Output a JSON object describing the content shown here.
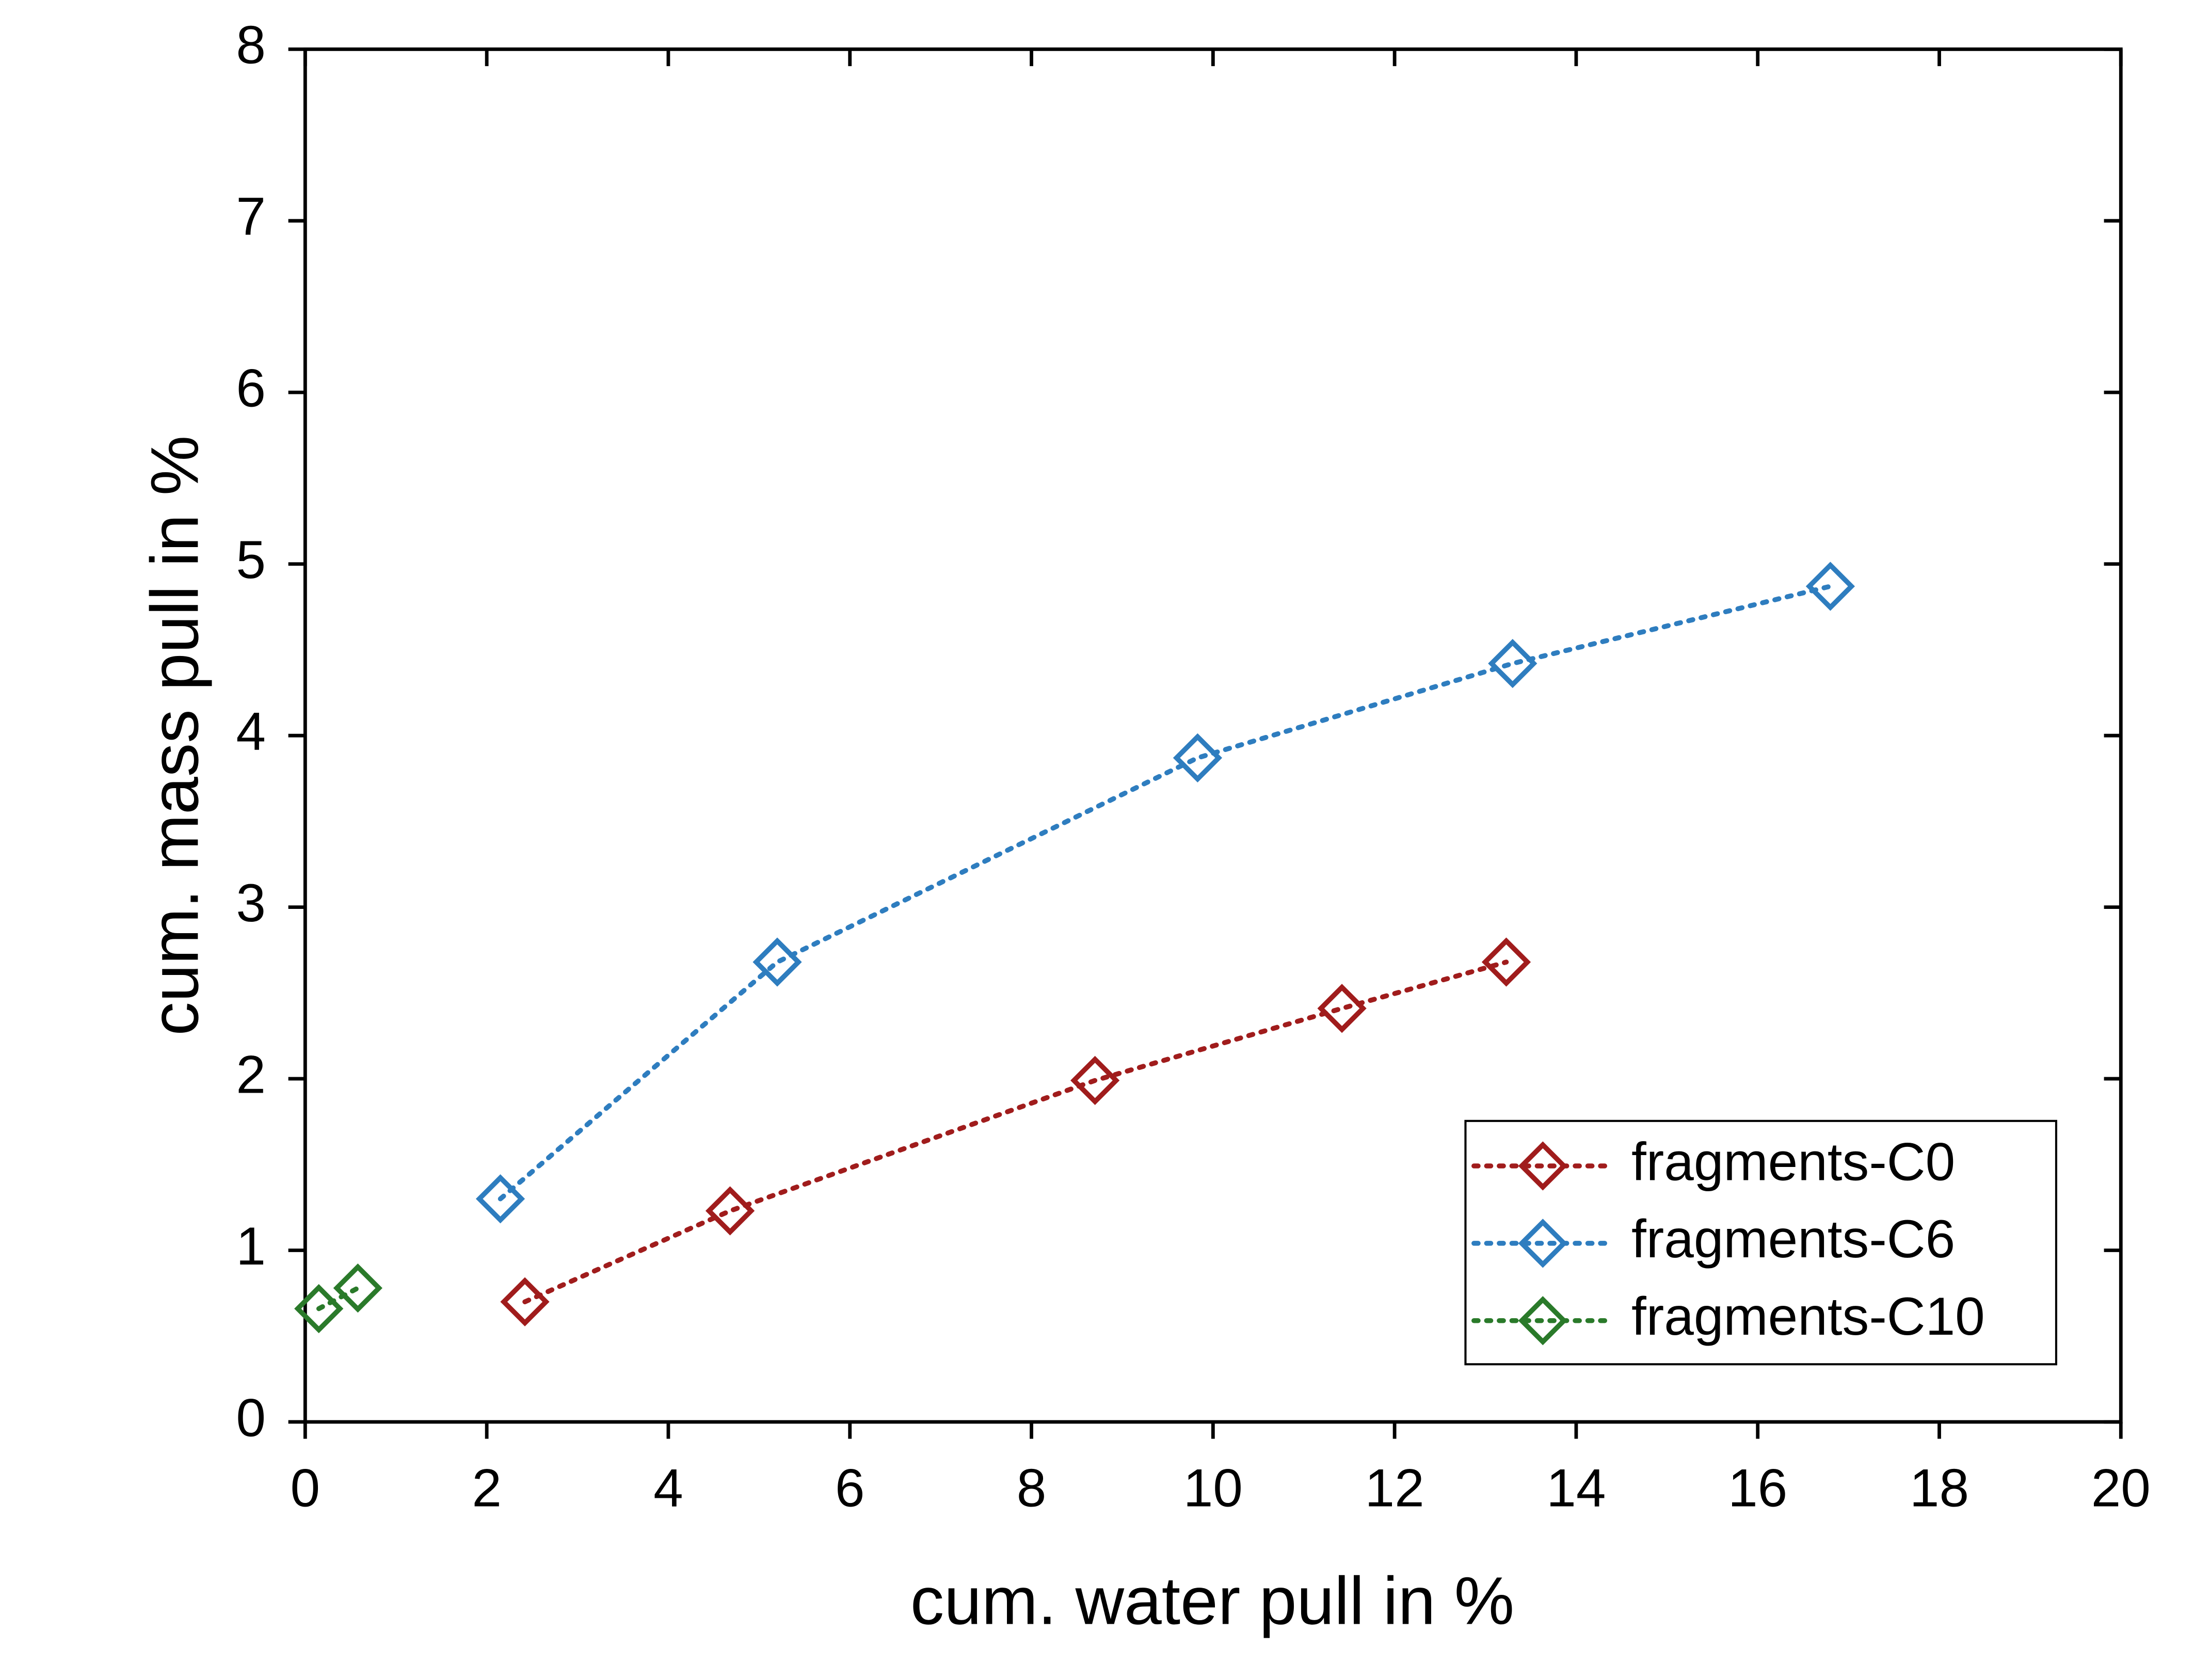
{
  "chart_data": {
    "type": "scatter",
    "xlabel": "cum. water pull in %",
    "ylabel": "cum. mass pull in %",
    "xlim": [
      0,
      20
    ],
    "xticks": [
      0,
      2,
      4,
      6,
      8,
      10,
      12,
      14,
      16,
      18,
      20
    ],
    "ylim": [
      0,
      8
    ],
    "yticks": [
      0,
      1,
      2,
      3,
      4,
      5,
      6,
      7,
      8
    ],
    "legend": "lower right",
    "series": [
      {
        "name": "fragments-C0",
        "color": "#a01c1c",
        "x": [
          2.42,
          4.68,
          8.7,
          11.42,
          13.23
        ],
        "values": [
          0.7,
          1.23,
          1.99,
          2.41,
          2.68
        ]
      },
      {
        "name": "fragments-C6",
        "color": "#2e7dbf",
        "x": [
          2.15,
          5.2,
          9.83,
          13.3,
          16.8
        ],
        "values": [
          1.3,
          2.68,
          3.87,
          4.42,
          4.87
        ]
      },
      {
        "name": "fragments-C10",
        "color": "#2a7a2a",
        "x": [
          0.15,
          0.58
        ],
        "values": [
          0.66,
          0.78
        ]
      }
    ]
  }
}
